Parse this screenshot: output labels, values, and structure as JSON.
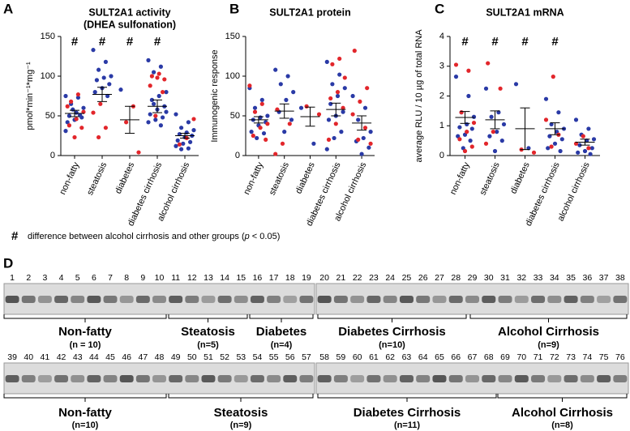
{
  "chart_data": [
    {
      "type": "scatter",
      "panel": "A",
      "title": [
        "SULT2A1 activity",
        "(DHEA sulfonation)"
      ],
      "ylabel": "pmol*min⁻¹*mg⁻¹",
      "categories": [
        "non-fatty",
        "steatosis",
        "diabetes",
        "diabetes cirrhosis",
        "alcohol cirrhosis"
      ],
      "annotations": [
        "#",
        "#",
        "#",
        "#",
        null
      ],
      "ylim": [
        0,
        150
      ],
      "yticks": [
        0,
        50,
        100,
        150
      ],
      "colors": {
        "red": "#e2262b",
        "blue": "#2a3aa6"
      },
      "groups": [
        {
          "red": [
            77,
            68,
            55,
            46,
            38,
            35,
            23,
            62
          ],
          "blue": [
            75,
            73,
            65,
            60,
            54,
            50,
            48,
            45,
            42,
            51,
            58,
            31
          ],
          "mean": 53,
          "sem": 4
        },
        {
          "red": [
            65,
            54,
            35,
            23
          ],
          "blue": [
            133,
            118,
            108,
            100,
            98,
            95,
            90,
            85,
            80,
            75
          ],
          "mean": 77,
          "sem": 9
        },
        {
          "red": [
            62,
            42,
            4
          ],
          "blue": [
            83
          ],
          "mean": 45,
          "sem": 17
        },
        {
          "red": [
            103,
            100,
            96,
            98,
            88,
            80,
            50
          ],
          "blue": [
            120,
            112,
            105,
            80,
            75,
            70,
            62,
            58,
            52,
            48,
            45,
            42,
            38,
            65,
            55
          ],
          "mean": 62,
          "sem": 8
        },
        {
          "red": [
            46,
            22,
            14
          ],
          "blue": [
            52,
            42,
            35,
            32,
            29,
            27,
            25,
            23,
            19,
            17,
            15,
            12,
            9,
            8
          ],
          "mean": 25,
          "sem": 3
        }
      ]
    },
    {
      "type": "scatter",
      "panel": "B",
      "title": [
        "SULT2A1 protein"
      ],
      "ylabel": "Immunogenic response",
      "categories": [
        "non-fatty",
        "steatosis",
        "diabetes",
        "diabetes cirrhosis",
        "alcohol cirrhosis"
      ],
      "annotations": [
        null,
        null,
        null,
        null,
        null
      ],
      "ylim": [
        0,
        150
      ],
      "yticks": [
        0,
        50,
        100,
        150
      ],
      "colors": {
        "red": "#e2262b",
        "blue": "#2a3aa6"
      },
      "groups": [
        {
          "red": [
            88,
            65,
            55,
            40,
            35,
            25,
            20
          ],
          "blue": [
            85,
            70,
            60,
            50,
            48,
            45,
            42,
            38,
            30,
            28,
            22
          ],
          "mean": 45,
          "sem": 4
        },
        {
          "red": [
            58,
            40,
            15,
            2
          ],
          "blue": [
            108,
            100,
            90,
            80,
            70,
            55,
            45,
            30
          ],
          "mean": 56,
          "sem": 9
        },
        {
          "red": [
            62,
            52
          ],
          "blue": [
            60,
            15
          ],
          "mean": 49,
          "sem": 12
        },
        {
          "red": [
            122,
            115,
            98,
            80,
            72,
            60,
            40,
            20
          ],
          "blue": [
            118,
            102,
            90,
            85,
            75,
            65,
            55,
            50,
            45,
            30,
            22,
            8
          ],
          "mean": 58,
          "sem": 8
        },
        {
          "red": [
            132,
            85,
            68,
            52,
            35,
            20,
            15
          ],
          "blue": [
            75,
            60,
            45,
            30,
            22,
            18,
            10,
            2
          ],
          "mean": 41,
          "sem": 9
        }
      ]
    },
    {
      "type": "scatter",
      "panel": "C",
      "title": [
        "SULT2A1 mRNA"
      ],
      "ylabel": "average RLU / 10 µg of total RNA",
      "categories": [
        "non-fatty",
        "steatosis",
        "diabetes",
        "diabetes cirrhosis",
        "alcohol cirrhosis"
      ],
      "annotations": [
        "#",
        "#",
        "#",
        "#",
        null
      ],
      "ylim": [
        0,
        4
      ],
      "yticks": [
        0,
        1,
        2,
        3,
        4
      ],
      "colors": {
        "red": "#e2262b",
        "blue": "#2a3aa6"
      },
      "groups": [
        {
          "red": [
            3.05,
            2.85,
            1.45,
            1.1,
            0.8,
            0.55,
            0.3,
            0.15
          ],
          "blue": [
            2.65,
            2.0,
            1.45,
            1.3,
            1.05,
            0.95,
            0.9,
            0.7,
            0.65,
            0.5,
            0.25
          ],
          "mean": 1.28,
          "sem": 0.2
        },
        {
          "red": [
            3.1,
            2.25,
            0.8,
            0.4
          ],
          "blue": [
            2.25,
            1.45,
            1.3,
            1.05,
            0.8,
            0.65,
            0.5,
            0.15
          ],
          "mean": 1.2,
          "sem": 0.3
        },
        {
          "red": [
            0.2,
            0.1
          ],
          "blue": [
            2.4,
            0.25
          ],
          "mean": 0.9,
          "sem": 0.7
        },
        {
          "red": [
            2.65,
            1.2,
            0.7,
            0.3
          ],
          "blue": [
            1.9,
            1.45,
            1.05,
            0.9,
            0.8,
            0.65,
            0.55,
            0.4,
            0.25,
            0.15
          ],
          "mean": 0.9,
          "sem": 0.2
        },
        {
          "red": [
            0.65,
            0.4,
            0.25
          ],
          "blue": [
            1.2,
            0.9,
            0.7,
            0.55,
            0.5,
            0.35,
            0.25,
            0.15,
            0.1,
            0.05
          ],
          "mean": 0.45,
          "sem": 0.1
        }
      ]
    }
  ],
  "footnote": {
    "symbol": "#",
    "text": "difference between alcohol cirrhosis and other groups (",
    "italic": "p",
    "tail": " < 0.05)"
  },
  "blot": {
    "panel": "D",
    "rows": [
      {
        "left_lanes": [
          1,
          2,
          3,
          4,
          5,
          6,
          7,
          8,
          9,
          10,
          11,
          12,
          13,
          14,
          15,
          16,
          17,
          18,
          19
        ],
        "right_lanes": [
          20,
          21,
          22,
          23,
          24,
          25,
          26,
          27,
          28,
          29,
          30,
          31,
          32,
          33,
          34,
          35,
          36,
          37,
          38
        ],
        "groups": [
          {
            "label": "Non-fatty",
            "n": "(n = 10)"
          },
          {
            "label": "Steatosis",
            "n": "(n=5)"
          },
          {
            "label": "Diabetes",
            "n": "(n=4)"
          },
          {
            "label": "Diabetes Cirrhosis",
            "n": "(n=10)"
          },
          {
            "label": "Alcohol Cirrhosis",
            "n": "(n=9)"
          }
        ]
      },
      {
        "left_lanes": [
          39,
          40,
          41,
          42,
          43,
          44,
          45,
          46,
          47,
          48,
          49,
          50,
          51,
          52,
          53,
          54,
          55,
          56,
          57
        ],
        "right_lanes": [
          58,
          59,
          60,
          61,
          62,
          63,
          64,
          65,
          66,
          67,
          68,
          69,
          70,
          71,
          72,
          73,
          74,
          75,
          76
        ],
        "groups": [
          {
            "label": "Non-fatty",
            "n": "(n=10)"
          },
          {
            "label": "Steatosis",
            "n": "(n=9)"
          },
          {
            "label": "Diabetes Cirrhosis",
            "n": "(n=11)"
          },
          {
            "label": "Alcohol Cirrhosis",
            "n": "(n=8)"
          }
        ]
      }
    ]
  }
}
